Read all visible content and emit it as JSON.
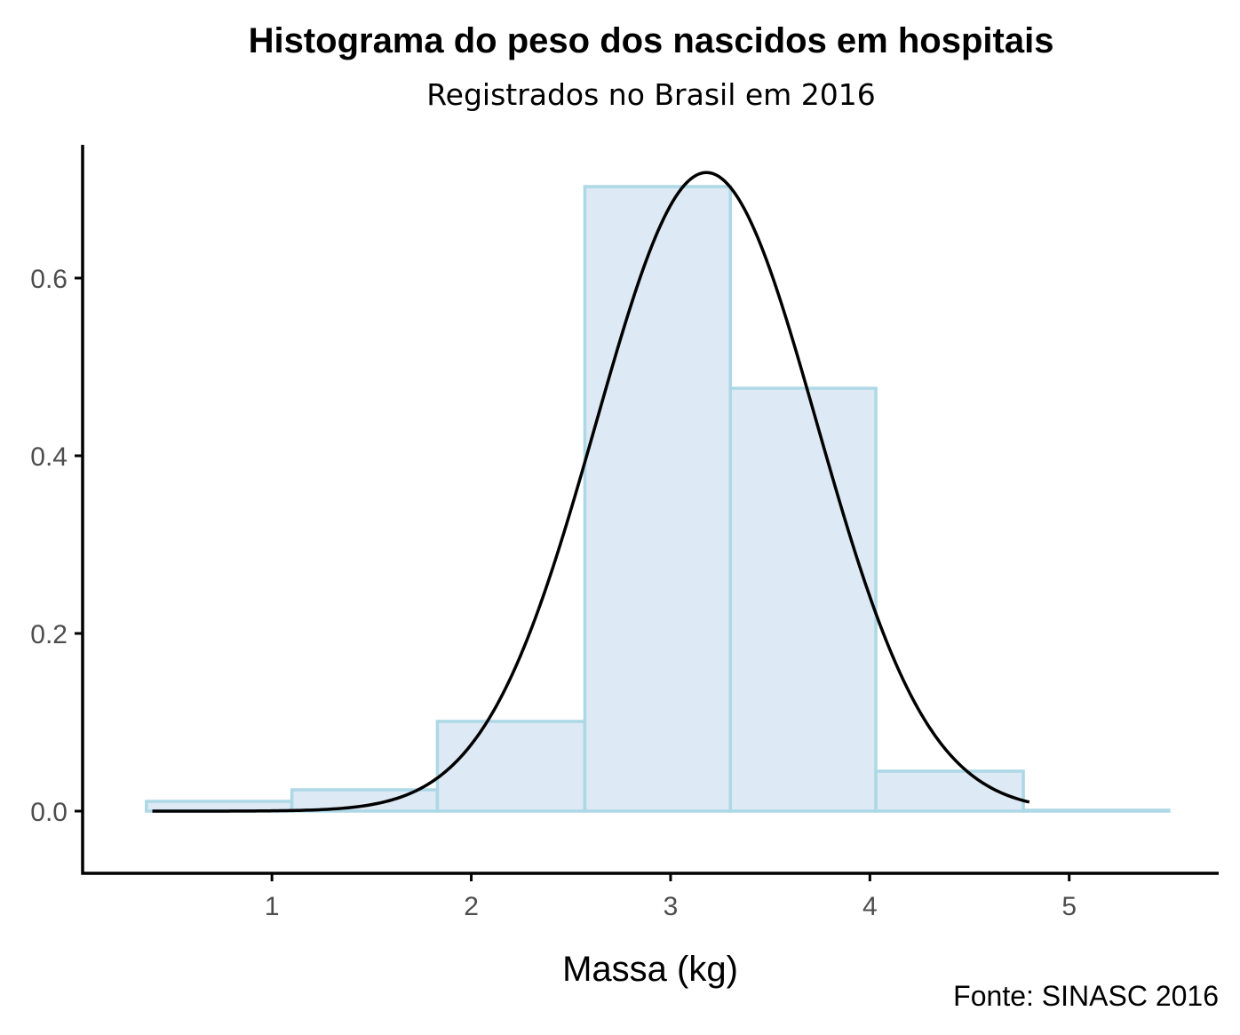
{
  "chart_data": {
    "type": "bar",
    "title": "Histograma do peso dos nascidos em hospitais",
    "subtitle": "Registrados no Brasil em 2016",
    "xlabel": "Massa (kg)",
    "ylabel": "",
    "caption": "Fonte: SINASC 2016",
    "xlim": [
      0.05,
      5.75
    ],
    "ylim": [
      -0.07,
      0.75
    ],
    "grid": false,
    "x_ticks": [
      1,
      2,
      3,
      4,
      5
    ],
    "x_tick_labels": [
      "1",
      "2",
      "3",
      "4",
      "5"
    ],
    "y_ticks": [
      0.0,
      0.2,
      0.4,
      0.6
    ],
    "y_tick_labels": [
      "0.0",
      "0.2",
      "0.4",
      "0.6"
    ],
    "bins": [
      {
        "x0": 0.37,
        "x1": 1.1,
        "density": 0.011
      },
      {
        "x0": 1.1,
        "x1": 1.83,
        "density": 0.024
      },
      {
        "x0": 1.83,
        "x1": 2.57,
        "density": 0.101
      },
      {
        "x0": 2.57,
        "x1": 3.3,
        "density": 0.703
      },
      {
        "x0": 3.3,
        "x1": 4.03,
        "density": 0.476
      },
      {
        "x0": 4.03,
        "x1": 4.77,
        "density": 0.045
      },
      {
        "x0": 4.77,
        "x1": 5.5,
        "density": 0.001
      }
    ],
    "density_curve": {
      "type": "line",
      "distribution": "normal",
      "mean": 3.18,
      "sd": 0.555,
      "x_range": [
        0.4,
        4.8
      ]
    },
    "colors": {
      "bar_fill": "#dde9f5",
      "bar_stroke": "#add8e6",
      "curve": "#000000",
      "axis": "#000000",
      "tick_label": "#4d4d4d"
    }
  }
}
